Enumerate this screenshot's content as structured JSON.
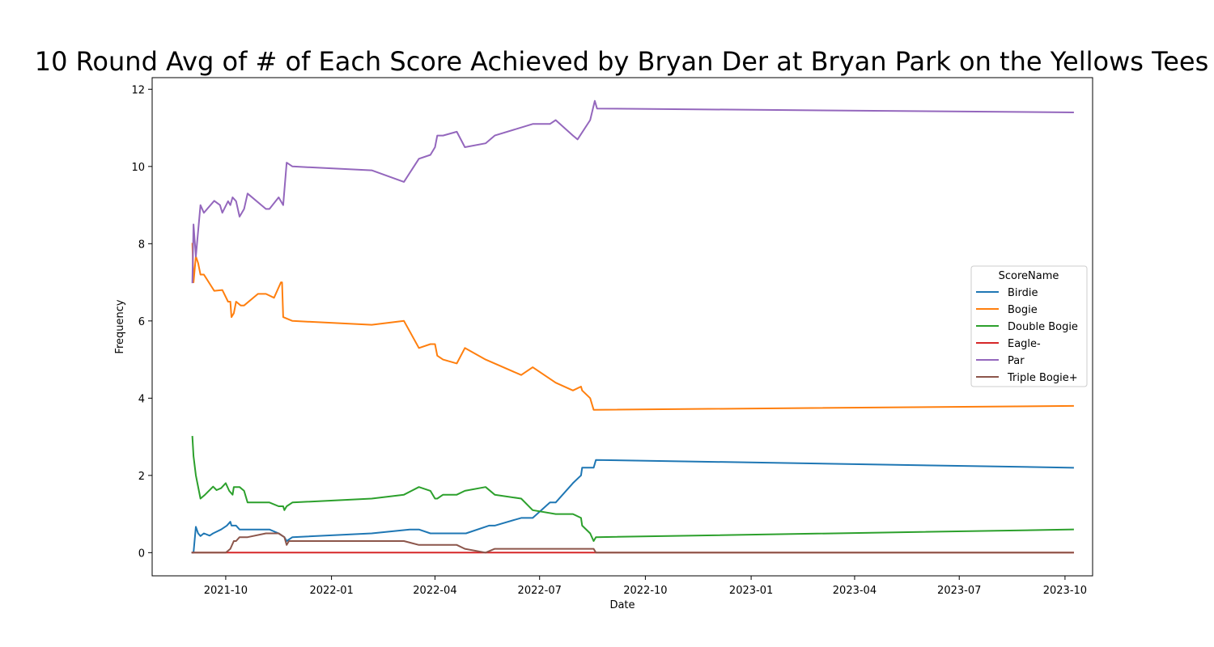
{
  "chart_data": {
    "type": "line",
    "title": "10 Round Avg of # of Each Score Achieved by Bryan Der at Bryan Park on the Yellows Tees",
    "xlabel": "Date",
    "ylabel": "Frequency",
    "xlim": [
      "2021-07-29",
      "2023-10-25"
    ],
    "ylim": [
      -0.6,
      12.3
    ],
    "xticks": [
      "2021-10-01",
      "2022-01-01",
      "2022-04-01",
      "2022-07-01",
      "2022-10-01",
      "2023-01-01",
      "2023-04-01",
      "2023-07-01",
      "2023-10-01"
    ],
    "xtick_labels": [
      "2021-10",
      "2022-01",
      "2022-04",
      "2022-07",
      "2022-10",
      "2023-01",
      "2023-04",
      "2023-07",
      "2023-10"
    ],
    "yticks": [
      0,
      2,
      4,
      6,
      8,
      10,
      12
    ],
    "ytick_labels": [
      "0",
      "2",
      "4",
      "6",
      "8",
      "10",
      "12"
    ],
    "legend": {
      "title": "ScoreName",
      "placement": "center-right"
    },
    "grid": false,
    "series": [
      {
        "name": "Birdie",
        "color": "#1f77b4",
        "points": [
          [
            "2021-09-02",
            0
          ],
          [
            "2021-09-03",
            0
          ],
          [
            "2021-09-05",
            0.67
          ],
          [
            "2021-09-07",
            0.5
          ],
          [
            "2021-09-09",
            0.43
          ],
          [
            "2021-09-12",
            0.5
          ],
          [
            "2021-09-17",
            0.44
          ],
          [
            "2021-09-20",
            0.5
          ],
          [
            "2021-09-27",
            0.6
          ],
          [
            "2021-10-02",
            0.7
          ],
          [
            "2021-10-05",
            0.8
          ],
          [
            "2021-10-06",
            0.7
          ],
          [
            "2021-10-10",
            0.7
          ],
          [
            "2021-10-13",
            0.6
          ],
          [
            "2021-10-20",
            0.6
          ],
          [
            "2021-11-05",
            0.6
          ],
          [
            "2021-11-08",
            0.6
          ],
          [
            "2021-11-16",
            0.5
          ],
          [
            "2021-11-21",
            0.4
          ],
          [
            "2021-11-23",
            0.3
          ],
          [
            "2021-11-28",
            0.4
          ],
          [
            "2022-02-05",
            0.5
          ],
          [
            "2022-03-10",
            0.6
          ],
          [
            "2022-03-18",
            0.6
          ],
          [
            "2022-03-28",
            0.5
          ],
          [
            "2022-04-20",
            0.5
          ],
          [
            "2022-04-28",
            0.5
          ],
          [
            "2022-05-18",
            0.7
          ],
          [
            "2022-05-23",
            0.7
          ],
          [
            "2022-06-15",
            0.9
          ],
          [
            "2022-06-25",
            0.9
          ],
          [
            "2022-07-10",
            1.3
          ],
          [
            "2022-07-15",
            1.3
          ],
          [
            "2022-07-30",
            1.8
          ],
          [
            "2022-08-06",
            2.0
          ],
          [
            "2022-08-07",
            2.2
          ],
          [
            "2022-08-14",
            2.2
          ],
          [
            "2022-08-17",
            2.2
          ],
          [
            "2022-08-19",
            2.4
          ],
          [
            "2023-10-08",
            2.2
          ]
        ]
      },
      {
        "name": "Bogie",
        "color": "#ff7f0e",
        "points": [
          [
            "2021-09-02",
            8.0
          ],
          [
            "2021-09-03",
            7.0
          ],
          [
            "2021-09-05",
            7.67
          ],
          [
            "2021-09-07",
            7.5
          ],
          [
            "2021-09-09",
            7.2
          ],
          [
            "2021-09-12",
            7.2
          ],
          [
            "2021-09-21",
            6.78
          ],
          [
            "2021-09-28",
            6.8
          ],
          [
            "2021-10-03",
            6.5
          ],
          [
            "2021-10-05",
            6.5
          ],
          [
            "2021-10-06",
            6.1
          ],
          [
            "2021-10-08",
            6.2
          ],
          [
            "2021-10-10",
            6.5
          ],
          [
            "2021-10-14",
            6.4
          ],
          [
            "2021-10-17",
            6.4
          ],
          [
            "2021-10-29",
            6.7
          ],
          [
            "2021-11-05",
            6.7
          ],
          [
            "2021-11-12",
            6.6
          ],
          [
            "2021-11-18",
            7.0
          ],
          [
            "2021-11-19",
            7.0
          ],
          [
            "2021-11-20",
            6.1
          ],
          [
            "2021-11-28",
            6.0
          ],
          [
            "2022-02-05",
            5.9
          ],
          [
            "2022-03-05",
            6.0
          ],
          [
            "2022-03-18",
            5.3
          ],
          [
            "2022-03-28",
            5.4
          ],
          [
            "2022-04-01",
            5.4
          ],
          [
            "2022-04-03",
            5.1
          ],
          [
            "2022-04-08",
            5.0
          ],
          [
            "2022-04-20",
            4.9
          ],
          [
            "2022-04-27",
            5.3
          ],
          [
            "2022-05-15",
            5.0
          ],
          [
            "2022-06-15",
            4.6
          ],
          [
            "2022-06-25",
            4.8
          ],
          [
            "2022-07-15",
            4.4
          ],
          [
            "2022-07-30",
            4.2
          ],
          [
            "2022-08-06",
            4.3
          ],
          [
            "2022-08-07",
            4.2
          ],
          [
            "2022-08-14",
            4.0
          ],
          [
            "2022-08-17",
            3.7
          ],
          [
            "2023-10-08",
            3.8
          ]
        ]
      },
      {
        "name": "Double Bogie",
        "color": "#2ca02c",
        "points": [
          [
            "2021-09-02",
            3.0
          ],
          [
            "2021-09-03",
            2.5
          ],
          [
            "2021-09-05",
            2.0
          ],
          [
            "2021-09-09",
            1.4
          ],
          [
            "2021-09-13",
            1.5
          ],
          [
            "2021-09-20",
            1.71
          ],
          [
            "2021-09-23",
            1.62
          ],
          [
            "2021-09-27",
            1.67
          ],
          [
            "2021-10-01",
            1.8
          ],
          [
            "2021-10-04",
            1.6
          ],
          [
            "2021-10-07",
            1.5
          ],
          [
            "2021-10-08",
            1.7
          ],
          [
            "2021-10-13",
            1.7
          ],
          [
            "2021-10-17",
            1.6
          ],
          [
            "2021-10-20",
            1.3
          ],
          [
            "2021-11-05",
            1.3
          ],
          [
            "2021-11-08",
            1.3
          ],
          [
            "2021-11-16",
            1.2
          ],
          [
            "2021-11-20",
            1.2
          ],
          [
            "2021-11-21",
            1.1
          ],
          [
            "2021-11-23",
            1.2
          ],
          [
            "2021-11-28",
            1.3
          ],
          [
            "2022-02-05",
            1.4
          ],
          [
            "2022-03-05",
            1.5
          ],
          [
            "2022-03-18",
            1.7
          ],
          [
            "2022-03-28",
            1.6
          ],
          [
            "2022-04-01",
            1.4
          ],
          [
            "2022-04-03",
            1.4
          ],
          [
            "2022-04-08",
            1.5
          ],
          [
            "2022-04-20",
            1.5
          ],
          [
            "2022-04-27",
            1.6
          ],
          [
            "2022-05-15",
            1.7
          ],
          [
            "2022-05-23",
            1.5
          ],
          [
            "2022-06-15",
            1.4
          ],
          [
            "2022-06-25",
            1.1
          ],
          [
            "2022-07-15",
            1.0
          ],
          [
            "2022-07-30",
            1.0
          ],
          [
            "2022-08-06",
            0.9
          ],
          [
            "2022-08-07",
            0.7
          ],
          [
            "2022-08-14",
            0.5
          ],
          [
            "2022-08-17",
            0.3
          ],
          [
            "2022-08-19",
            0.4
          ],
          [
            "2023-10-08",
            0.6
          ]
        ]
      },
      {
        "name": "Eagle-",
        "color": "#d62728",
        "points": [
          [
            "2021-09-02",
            0
          ],
          [
            "2023-10-08",
            0
          ]
        ]
      },
      {
        "name": "Par",
        "color": "#9467bd",
        "points": [
          [
            "2021-09-02",
            7.0
          ],
          [
            "2021-09-03",
            8.5
          ],
          [
            "2021-09-05",
            7.67
          ],
          [
            "2021-09-09",
            9.0
          ],
          [
            "2021-09-12",
            8.8
          ],
          [
            "2021-09-21",
            9.11
          ],
          [
            "2021-09-26",
            9.0
          ],
          [
            "2021-09-28",
            8.8
          ],
          [
            "2021-10-03",
            9.1
          ],
          [
            "2021-10-05",
            9.0
          ],
          [
            "2021-10-07",
            9.2
          ],
          [
            "2021-10-10",
            9.1
          ],
          [
            "2021-10-13",
            8.7
          ],
          [
            "2021-10-17",
            8.9
          ],
          [
            "2021-10-20",
            9.3
          ],
          [
            "2021-11-05",
            8.9
          ],
          [
            "2021-11-08",
            8.9
          ],
          [
            "2021-11-16",
            9.2
          ],
          [
            "2021-11-20",
            9.0
          ],
          [
            "2021-11-23",
            10.1
          ],
          [
            "2021-11-28",
            10.0
          ],
          [
            "2022-02-05",
            9.9
          ],
          [
            "2022-03-05",
            9.6
          ],
          [
            "2022-03-18",
            10.2
          ],
          [
            "2022-03-28",
            10.3
          ],
          [
            "2022-04-01",
            10.5
          ],
          [
            "2022-04-03",
            10.8
          ],
          [
            "2022-04-08",
            10.8
          ],
          [
            "2022-04-20",
            10.9
          ],
          [
            "2022-04-27",
            10.5
          ],
          [
            "2022-05-15",
            10.6
          ],
          [
            "2022-05-23",
            10.8
          ],
          [
            "2022-06-25",
            11.1
          ],
          [
            "2022-07-10",
            11.1
          ],
          [
            "2022-07-15",
            11.2
          ],
          [
            "2022-07-30",
            10.8
          ],
          [
            "2022-08-03",
            10.7
          ],
          [
            "2022-08-14",
            11.2
          ],
          [
            "2022-08-18",
            11.7
          ],
          [
            "2022-08-20",
            11.5
          ],
          [
            "2023-10-08",
            11.4
          ]
        ]
      },
      {
        "name": "Triple Bogie+",
        "color": "#8c564b",
        "points": [
          [
            "2021-09-02",
            0
          ],
          [
            "2021-10-01",
            0
          ],
          [
            "2021-10-03",
            0.05
          ],
          [
            "2021-10-05",
            0.1
          ],
          [
            "2021-10-08",
            0.3
          ],
          [
            "2021-10-10",
            0.3
          ],
          [
            "2021-10-13",
            0.4
          ],
          [
            "2021-10-20",
            0.4
          ],
          [
            "2021-11-05",
            0.5
          ],
          [
            "2021-11-16",
            0.5
          ],
          [
            "2021-11-21",
            0.4
          ],
          [
            "2021-11-23",
            0.2
          ],
          [
            "2021-11-25",
            0.3
          ],
          [
            "2022-03-05",
            0.3
          ],
          [
            "2022-03-18",
            0.2
          ],
          [
            "2022-04-20",
            0.2
          ],
          [
            "2022-04-27",
            0.1
          ],
          [
            "2022-05-15",
            0.0
          ],
          [
            "2022-05-23",
            0.1
          ],
          [
            "2022-08-17",
            0.1
          ],
          [
            "2022-08-19",
            0.0
          ],
          [
            "2023-10-08",
            0.0
          ]
        ]
      }
    ]
  }
}
